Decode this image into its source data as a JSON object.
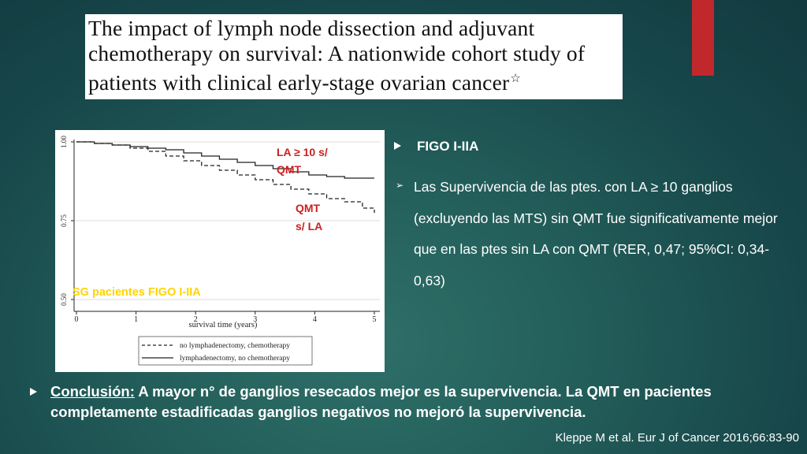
{
  "slide": {
    "title": "The impact of lymph node dissection and adjuvant chemotherapy on survival: A nationwide cohort study of patients with clinical early-stage ovarian cancer",
    "title_star": "☆",
    "bullets": {
      "heading": "FIGO I-IIA",
      "sub_text": "Las Supervivencia de las  ptes. con LA ≥ 10 ganglios (excluyendo las MTS) sin QMT fue significativamente mejor que en las ptes sin LA con QMT (RER, 0,47; 95%CI: 0,34-0,63)"
    },
    "conclusion": {
      "lead": "Conclusión:",
      "text": " A mayor n° de ganglios resecados mejor es la supervivencia. La QMT en pacientes completamente estadificadas ganglios negativos no mejoró la supervivencia."
    },
    "citation": "Kleppe M et al. Eur J of Cancer 2016;66:83-90",
    "colors": {
      "accent_red": "#c0282b",
      "label_red": "#cc1f1f",
      "label_yellow": "#ffd400"
    }
  },
  "chart_data": {
    "type": "line",
    "xlabel": "survival time (years)",
    "x_ticks": [
      "0",
      "1",
      "2",
      "3",
      "4",
      "5"
    ],
    "y_ticks": [
      "0.50",
      "0.75",
      "1.00"
    ],
    "xlim": [
      0,
      5
    ],
    "ylim": [
      0.5,
      1.0
    ],
    "series": [
      {
        "name": "no lymphadenectomy, chemotherapy",
        "style": "dashed",
        "x": [
          0,
          0.3,
          0.6,
          0.9,
          1.2,
          1.5,
          1.8,
          2.1,
          2.4,
          2.7,
          3.0,
          3.3,
          3.6,
          3.9,
          4.2,
          4.5,
          4.8,
          5.0
        ],
        "y": [
          1.0,
          0.995,
          0.99,
          0.98,
          0.97,
          0.955,
          0.94,
          0.925,
          0.91,
          0.895,
          0.88,
          0.865,
          0.85,
          0.835,
          0.82,
          0.81,
          0.79,
          0.775
        ]
      },
      {
        "name": "lymphadenectomy, no chemotherapy",
        "style": "solid",
        "x": [
          0,
          0.3,
          0.6,
          0.9,
          1.2,
          1.5,
          1.8,
          2.1,
          2.4,
          2.7,
          3.0,
          3.3,
          3.6,
          3.9,
          4.2,
          4.5,
          4.8,
          5.0
        ],
        "y": [
          1.0,
          0.995,
          0.99,
          0.985,
          0.98,
          0.975,
          0.965,
          0.955,
          0.945,
          0.935,
          0.925,
          0.915,
          0.905,
          0.895,
          0.89,
          0.885,
          0.885,
          0.885
        ]
      }
    ],
    "annotations": [
      {
        "text": "LA ≥ 10 s/ QMT",
        "color": "#cc1f1f"
      },
      {
        "text": "QMT s/ LA",
        "color": "#cc1f1f"
      },
      {
        "text": "SG pacientes FIGO I-IIA",
        "color": "#ffd400"
      }
    ]
  }
}
